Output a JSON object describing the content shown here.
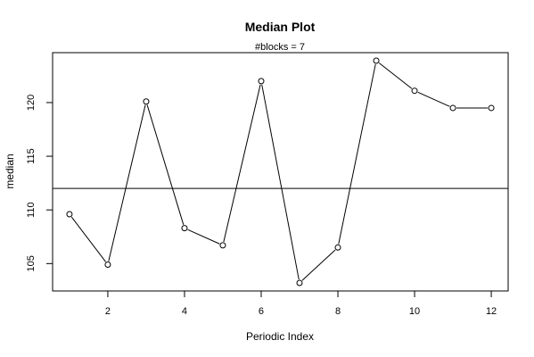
{
  "chart_data": {
    "type": "line",
    "title": "Median Plot",
    "subtitle": "#blocks =  7",
    "xlabel": "Periodic Index",
    "ylabel": "median",
    "x": [
      1,
      2,
      3,
      4,
      5,
      6,
      7,
      8,
      9,
      10,
      11,
      12
    ],
    "series": [
      {
        "values": [
          109.6,
          104.9,
          120.1,
          108.3,
          106.7,
          122.0,
          103.2,
          106.5,
          123.9,
          121.1,
          119.5,
          119.5
        ]
      }
    ],
    "reference_line": 112.0,
    "xlim": [
      0.56,
      12.44
    ],
    "ylim": [
      102.45,
      124.65
    ],
    "x_ticks": [
      2,
      4,
      6,
      8,
      10,
      12
    ],
    "x_tick_labels": [
      "2",
      "4",
      "6",
      "8",
      "10",
      "12"
    ],
    "y_ticks": [
      105,
      110,
      115,
      120
    ],
    "y_tick_labels": [
      "105",
      "110",
      "115",
      "120"
    ],
    "grid": false,
    "legend": "none",
    "colors": {
      "line": "#000000",
      "reference": "#000000",
      "background": "#ffffff"
    }
  }
}
